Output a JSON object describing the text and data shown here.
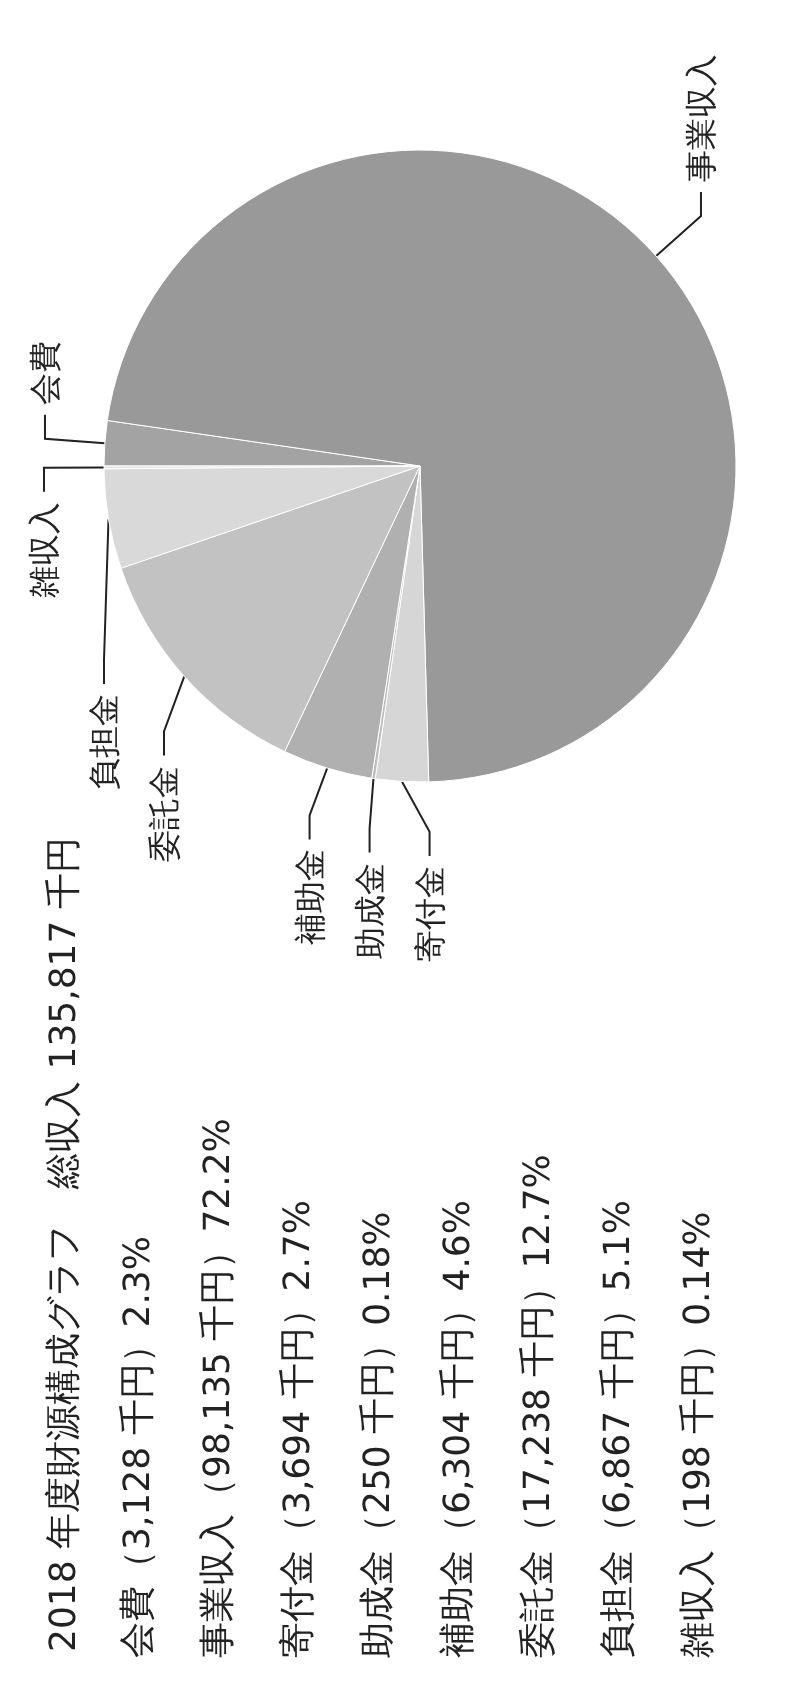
{
  "chart_data": {
    "type": "pie",
    "title": "2018 年度財源構成グラフ　総収入 135,817 千円",
    "categories": [
      "会費",
      "事業収入",
      "寄付金",
      "助成金",
      "補助金",
      "委託金",
      "負担金",
      "雑収入"
    ],
    "values": [
      2.3,
      72.2,
      2.7,
      0.18,
      4.6,
      12.7,
      5.1,
      0.14
    ],
    "colors": [
      "#a3a3a3",
      "#999999",
      "#d6d6d6",
      "#bdbdbd",
      "#b0b0b0",
      "#c2c2c2",
      "#d9d9d9",
      "#e3e3e3"
    ],
    "annotations": [
      "会費（3,128 千円）2.3%",
      "事業収入（98,135 千円）72.2%",
      "寄付金（3,694 千円）2.7%",
      "助成金（250 千円）0.18%",
      "補助金（6,304 千円）4.6%",
      "委託金（17,238 千円）12.7%",
      "負担金（6,867 千円）5.1%",
      "雑収入（198 千円）0.14%"
    ]
  }
}
